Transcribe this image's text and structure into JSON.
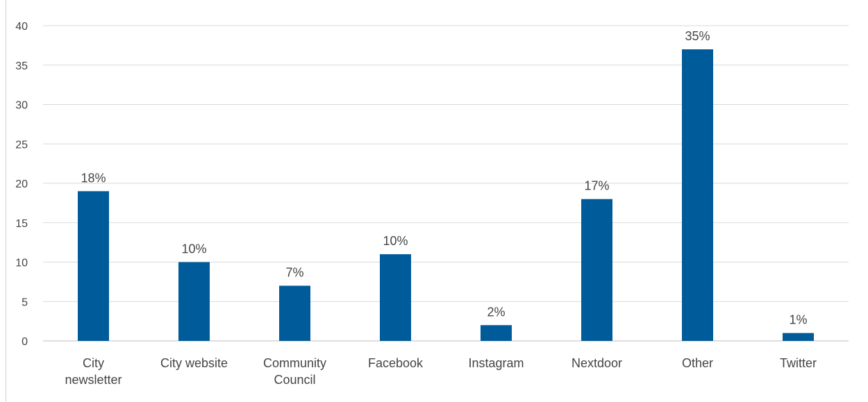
{
  "chart_data": {
    "type": "bar",
    "title": "",
    "xlabel": "",
    "ylabel": "",
    "categories": [
      [
        "City",
        "newsletter"
      ],
      [
        "City website"
      ],
      [
        "Community",
        "Council"
      ],
      [
        "Facebook"
      ],
      [
        "Instagram"
      ],
      [
        "Nextdoor"
      ],
      [
        "Other"
      ],
      [
        "Twitter"
      ]
    ],
    "values": [
      19,
      10,
      7,
      11,
      2,
      18,
      37,
      1
    ],
    "data_labels": [
      "18%",
      "10%",
      "7%",
      "10%",
      "2%",
      "17%",
      "35%",
      "1%"
    ],
    "ylim": [
      0,
      40
    ],
    "yticks": [
      0,
      5,
      10,
      15,
      20,
      25,
      30,
      35,
      40
    ],
    "grid": true,
    "legend": "none",
    "colors": {
      "bar": "#005b9a",
      "grid": "#d9d9d9",
      "axis": "#bfbfbf",
      "text": "#444444"
    }
  }
}
